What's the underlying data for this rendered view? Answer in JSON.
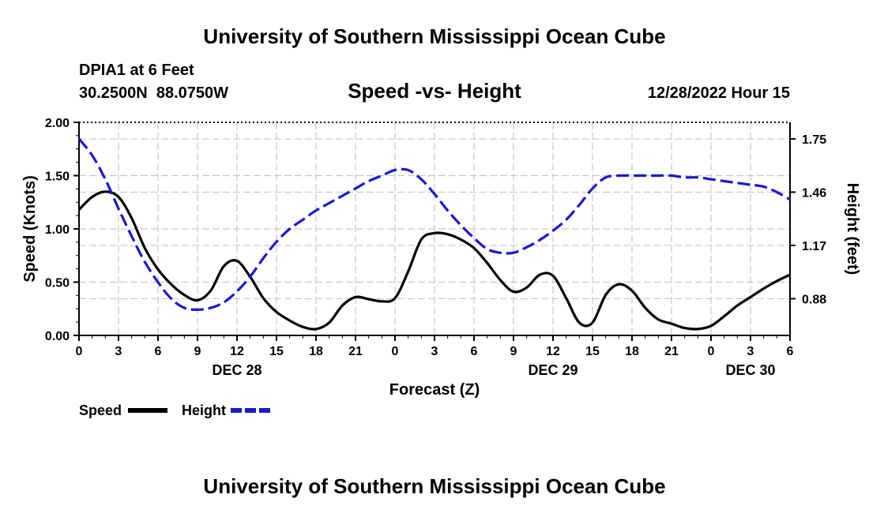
{
  "header": {
    "title": "University of Southern Mississippi Ocean Cube",
    "station": "DPIA1 at 6 Feet",
    "coords": "30.2500N  88.0750W",
    "chart_title": "Speed -vs- Height",
    "datetime": "12/28/2022 Hour 15"
  },
  "footer": {
    "title": "University of Southern Mississippi Ocean Cube"
  },
  "colors": {
    "speed": "#000000",
    "height": "#1a1acc",
    "grid": "#c8c8c8"
  },
  "chart_data": {
    "type": "line",
    "title": "Speed -vs- Height",
    "xlabel": "Forecast (Z)",
    "ylabel": "Speed (Knots)",
    "y2label": "Height (feet)",
    "grid": true,
    "legend_position": "bottom-left",
    "xlim": [
      0,
      54
    ],
    "ylim": [
      0,
      2
    ],
    "y2lim": [
      0.68,
      1.84
    ],
    "x_ticks": [
      0,
      3,
      6,
      9,
      12,
      15,
      18,
      21,
      24,
      27,
      30,
      33,
      36,
      39,
      42,
      45,
      48,
      51,
      54
    ],
    "x_tick_labels": [
      "0",
      "3",
      "6",
      "9",
      "12",
      "15",
      "18",
      "21",
      "0",
      "3",
      "6",
      "9",
      "12",
      "15",
      "18",
      "21",
      "0",
      "3",
      "6"
    ],
    "date_labels": [
      {
        "x": 12,
        "label": "DEC 28"
      },
      {
        "x": 36,
        "label": "DEC 29"
      },
      {
        "x": 51,
        "label": "DEC 30"
      }
    ],
    "y_ticks": [
      0,
      0.5,
      1,
      1.5,
      2
    ],
    "y_tick_labels": [
      "0.00",
      "0.50",
      "1.00",
      "1.50",
      "2.00"
    ],
    "y2_ticks": [
      0.88,
      1.17,
      1.46,
      1.75
    ],
    "y2_tick_labels": [
      "0.88",
      "1.17",
      "1.46",
      "1.75"
    ],
    "series": [
      {
        "name": "Speed",
        "axis": "left",
        "style": "solid",
        "x": [
          0,
          1,
          2,
          3,
          4,
          5,
          6,
          7,
          8,
          9,
          10,
          11,
          12,
          13,
          14,
          15,
          16,
          17,
          18,
          19,
          20,
          21,
          22,
          23,
          24,
          25,
          26,
          27,
          28,
          29,
          30,
          31,
          32,
          33,
          34,
          35,
          36,
          37,
          38,
          39,
          40,
          41,
          42,
          43,
          44,
          45,
          46,
          47,
          48,
          49,
          50,
          51,
          52,
          53,
          54
        ],
        "values": [
          1.18,
          1.3,
          1.35,
          1.3,
          1.1,
          0.82,
          0.62,
          0.48,
          0.38,
          0.33,
          0.42,
          0.65,
          0.7,
          0.55,
          0.35,
          0.22,
          0.14,
          0.08,
          0.06,
          0.12,
          0.28,
          0.36,
          0.34,
          0.32,
          0.35,
          0.6,
          0.9,
          0.96,
          0.95,
          0.9,
          0.82,
          0.68,
          0.52,
          0.41,
          0.45,
          0.57,
          0.56,
          0.35,
          0.12,
          0.12,
          0.38,
          0.48,
          0.42,
          0.26,
          0.15,
          0.11,
          0.07,
          0.06,
          0.09,
          0.18,
          0.28,
          0.36,
          0.44,
          0.51,
          0.57
        ]
      },
      {
        "name": "Height",
        "axis": "right",
        "style": "dashed",
        "x": [
          0,
          1,
          2,
          3,
          4,
          5,
          6,
          7,
          8,
          9,
          10,
          11,
          12,
          13,
          14,
          15,
          16,
          17,
          18,
          19,
          20,
          21,
          22,
          23,
          24,
          25,
          26,
          27,
          28,
          29,
          30,
          31,
          32,
          33,
          34,
          35,
          36,
          37,
          38,
          39,
          40,
          41,
          42,
          43,
          44,
          45,
          46,
          47,
          48,
          49,
          50,
          51,
          52,
          53,
          54
        ],
        "values": [
          1.75,
          1.66,
          1.53,
          1.37,
          1.22,
          1.08,
          0.97,
          0.88,
          0.83,
          0.82,
          0.83,
          0.86,
          0.92,
          1.0,
          1.1,
          1.19,
          1.26,
          1.31,
          1.36,
          1.4,
          1.44,
          1.48,
          1.52,
          1.55,
          1.58,
          1.58,
          1.53,
          1.45,
          1.36,
          1.28,
          1.21,
          1.15,
          1.13,
          1.13,
          1.16,
          1.2,
          1.25,
          1.31,
          1.39,
          1.48,
          1.54,
          1.55,
          1.55,
          1.55,
          1.55,
          1.55,
          1.54,
          1.54,
          1.53,
          1.52,
          1.51,
          1.5,
          1.49,
          1.46,
          1.42
        ]
      }
    ]
  }
}
